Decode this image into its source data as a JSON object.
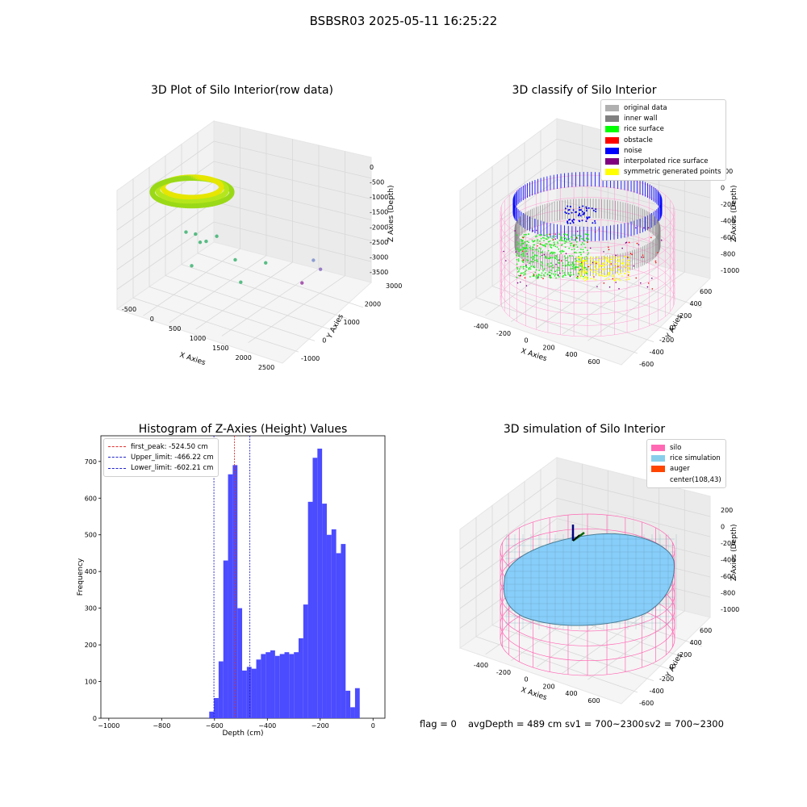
{
  "figure_title": "BSBSR03 2025-05-11 16:25:22",
  "footer": {
    "flag": "flag = 0",
    "avg_depth": "avgDepth = 489 cm",
    "sv1": "sv1 = 700~2300",
    "sv2": "sv2 = 700~2300"
  },
  "colors": {
    "hist_bar": "#4b4bff",
    "first_peak": "#e03030",
    "limit_line": "#2222cc",
    "rice_surface": "#00ff00",
    "noise": "#0000ff",
    "wall": "#7f7f7f",
    "silo_wire": "#ff69b4",
    "rice_sim": "#87cefa",
    "auger": "#ff4500"
  },
  "chart_data": [
    {
      "type": "scatter",
      "panel": "3d-raw",
      "title": "3D Plot of Silo Interior(row data)",
      "xlabel": "X Axies",
      "ylabel": "Y Axies",
      "zlabel": "Z Axies (Depth)",
      "x_ticks": [
        "-500",
        "0",
        "500",
        "1000",
        "1500",
        "2000",
        "2500"
      ],
      "y_ticks": [
        "-1000",
        "0",
        "1000",
        "2000",
        "3000"
      ],
      "z_ticks": [
        "0",
        "-500",
        "-1000",
        "-1500",
        "-2000",
        "-2500",
        "-3000",
        "-3500"
      ],
      "xlim": [
        -600,
        2600
      ],
      "ylim": [
        -1200,
        3100
      ],
      "zlim": [
        -3700,
        200
      ],
      "points": [
        [
          1600,
          2700,
          -3000
        ],
        [
          1700,
          2800,
          -3300
        ],
        [
          1500,
          2400,
          -3600
        ],
        [
          350,
          300,
          -1600
        ],
        [
          300,
          200,
          -1300
        ],
        [
          150,
          100,
          -1250
        ],
        [
          600,
          500,
          -1400
        ],
        [
          450,
          350,
          -1550
        ],
        [
          200,
          250,
          -2400
        ],
        [
          800,
          900,
          -2300
        ],
        [
          1200,
          1400,
          -2500
        ],
        [
          1000,
          700,
          -2800
        ]
      ]
    },
    {
      "type": "scatter",
      "panel": "3d-classify",
      "title": "3D classify of Silo Interior",
      "xlabel": "X Axies",
      "ylabel": "Y Axies",
      "zlabel": "Z Axies (Depth)",
      "x_ticks": [
        "-400",
        "-200",
        "0",
        "200",
        "400",
        "600"
      ],
      "y_ticks": [
        "-600",
        "-400",
        "-200",
        "0",
        "200",
        "400",
        "600"
      ],
      "z_ticks": [
        "200",
        "0",
        "-200",
        "-400",
        "-600",
        "-800",
        "-1000"
      ],
      "legend": [
        "original data",
        "inner wall",
        "rice surface",
        "obstacle",
        "noise",
        "interpolated rice surface",
        "symmetric generated points"
      ],
      "legend_colors": [
        "#b0b0b0",
        "#808080",
        "#00ff00",
        "#ff0000",
        "#0000ff",
        "#800080",
        "#ffff00"
      ]
    },
    {
      "type": "bar",
      "panel": "histogram",
      "title": "Histogram of Z-Axies (Height) Values",
      "xlabel": "Depth (cm)",
      "ylabel": "Frequency",
      "xlim": [
        -1030,
        45
      ],
      "ylim": [
        0,
        770
      ],
      "x_ticks": [
        "-1000",
        "-800",
        "-600",
        "-400",
        "-200",
        "0"
      ],
      "y_ticks": [
        "0",
        "100",
        "200",
        "300",
        "400",
        "500",
        "600",
        "700"
      ],
      "bin_start": -620,
      "bin_width": 17.8,
      "values": [
        18,
        55,
        155,
        430,
        665,
        690,
        300,
        130,
        140,
        135,
        160,
        175,
        180,
        185,
        170,
        175,
        180,
        175,
        180,
        218,
        310,
        590,
        710,
        735,
        585,
        500,
        515,
        450,
        475,
        75,
        30,
        82
      ],
      "vlines": [
        {
          "label": "first_peak: -524.50 cm",
          "x": -524.5,
          "color": "#e03030"
        },
        {
          "label": "Upper_limit: -466.22 cm",
          "x": -466.22,
          "color": "#2222cc"
        },
        {
          "label": "Lower_limit: -602.21 cm",
          "x": -602.21,
          "color": "#2222cc"
        }
      ]
    },
    {
      "type": "scatter",
      "panel": "3d-simulation",
      "title": "3D simulation of Silo Interior",
      "xlabel": "X Axies",
      "ylabel": "Y Axies",
      "zlabel": "Z Axies (Depth)",
      "x_ticks": [
        "-400",
        "-200",
        "0",
        "200",
        "400",
        "600"
      ],
      "y_ticks": [
        "-600",
        "-400",
        "-200",
        "0",
        "200",
        "400",
        "600"
      ],
      "z_ticks": [
        "200",
        "0",
        "-200",
        "-400",
        "-600",
        "-800",
        "-1000"
      ],
      "legend": [
        "silo",
        "rice simulation",
        "auger",
        "center(108,43)"
      ],
      "legend_colors": [
        "#ff69b4",
        "#87ceeb",
        "#ff4500",
        ""
      ]
    }
  ]
}
